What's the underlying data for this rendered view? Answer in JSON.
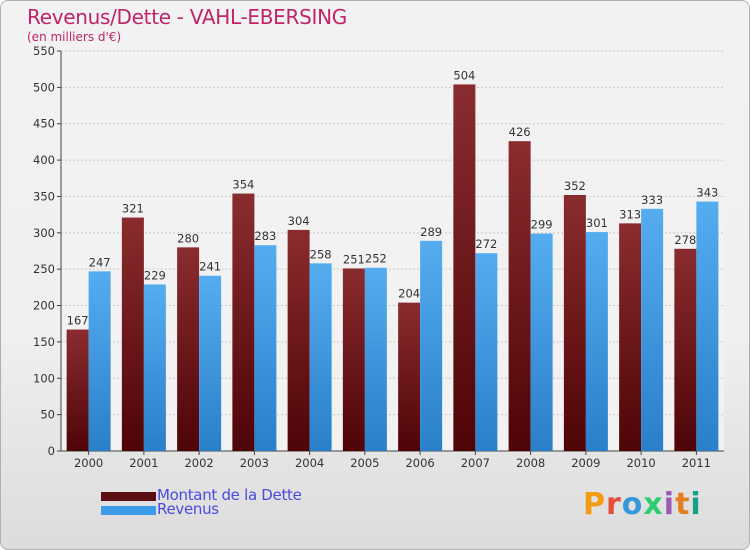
{
  "title": "Revenus/Dette - VAHL-EBERSING",
  "subtitle": "(en milliers d'€)",
  "logo_text": "Proxiti",
  "colors": {
    "title": "#c0246a",
    "dette": "#7b1f22",
    "revenus": "#3d9be8",
    "legend_text": "#4a4ae0"
  },
  "legend": {
    "dette_label": "Montant de la Dette",
    "revenus_label": "Revenus"
  },
  "chart_data": {
    "type": "bar",
    "title": "Revenus/Dette - VAHL-EBERSING",
    "subtitle": "(en milliers d'€)",
    "categories": [
      "2000",
      "2001",
      "2002",
      "2003",
      "2004",
      "2005",
      "2006",
      "2007",
      "2008",
      "2009",
      "2010",
      "2011"
    ],
    "series": [
      {
        "name": "Montant de la Dette",
        "values": [
          167,
          321,
          280,
          354,
          304,
          251,
          204,
          504,
          426,
          352,
          313,
          278
        ]
      },
      {
        "name": "Revenus",
        "values": [
          247,
          229,
          241,
          283,
          258,
          252,
          289,
          272,
          299,
          301,
          333,
          343
        ]
      }
    ],
    "ylim": [
      0,
      550
    ],
    "yticks": [
      0,
      50,
      100,
      150,
      200,
      250,
      300,
      350,
      400,
      450,
      500,
      550
    ],
    "grid": true,
    "legend_position": "bottom-left"
  }
}
